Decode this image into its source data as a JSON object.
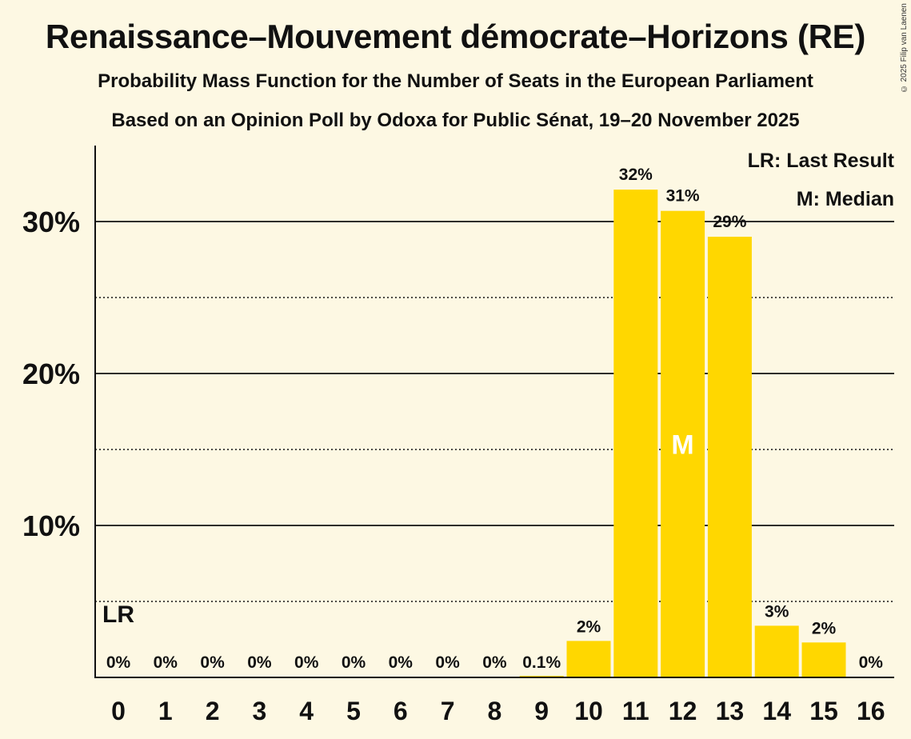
{
  "title": "Renaissance–Mouvement démocrate–Horizons (RE)",
  "subtitle_1": "Probability Mass Function for the Number of Seats in the European Parliament",
  "subtitle_2": "Based on an Opinion Poll by Odoxa for Public Sénat, 19–20 November 2025",
  "copyright": "© 2025 Filip van Laenen",
  "colors": {
    "bar": "#ffd700",
    "background": "#fdf8e3",
    "text": "#111111"
  },
  "chart_data": {
    "type": "bar",
    "categories": [
      "0",
      "1",
      "2",
      "3",
      "4",
      "5",
      "6",
      "7",
      "8",
      "9",
      "10",
      "11",
      "12",
      "13",
      "14",
      "15",
      "16"
    ],
    "values": [
      0,
      0,
      0,
      0,
      0,
      0,
      0,
      0,
      0,
      0.1,
      2.4,
      32.1,
      30.7,
      29.0,
      3.4,
      2.3,
      0
    ],
    "value_labels": [
      "0%",
      "0%",
      "0%",
      "0%",
      "0%",
      "0%",
      "0%",
      "0%",
      "0%",
      "0.1%",
      "2%",
      "32%",
      "31%",
      "29%",
      "3%",
      "2%",
      "0%"
    ],
    "y_ticks": [
      10,
      20,
      30
    ],
    "y_tick_labels": [
      "10%",
      "20%",
      "30%"
    ],
    "y_minor_ticks": [
      5,
      15,
      25
    ],
    "ylim": [
      0,
      35
    ],
    "last_result_seat": 0,
    "last_result_label": "LR",
    "median_seat": 12,
    "median_label": "M",
    "legend": [
      "LR: Last Result",
      "M: Median"
    ],
    "legend_position": "top-right"
  }
}
